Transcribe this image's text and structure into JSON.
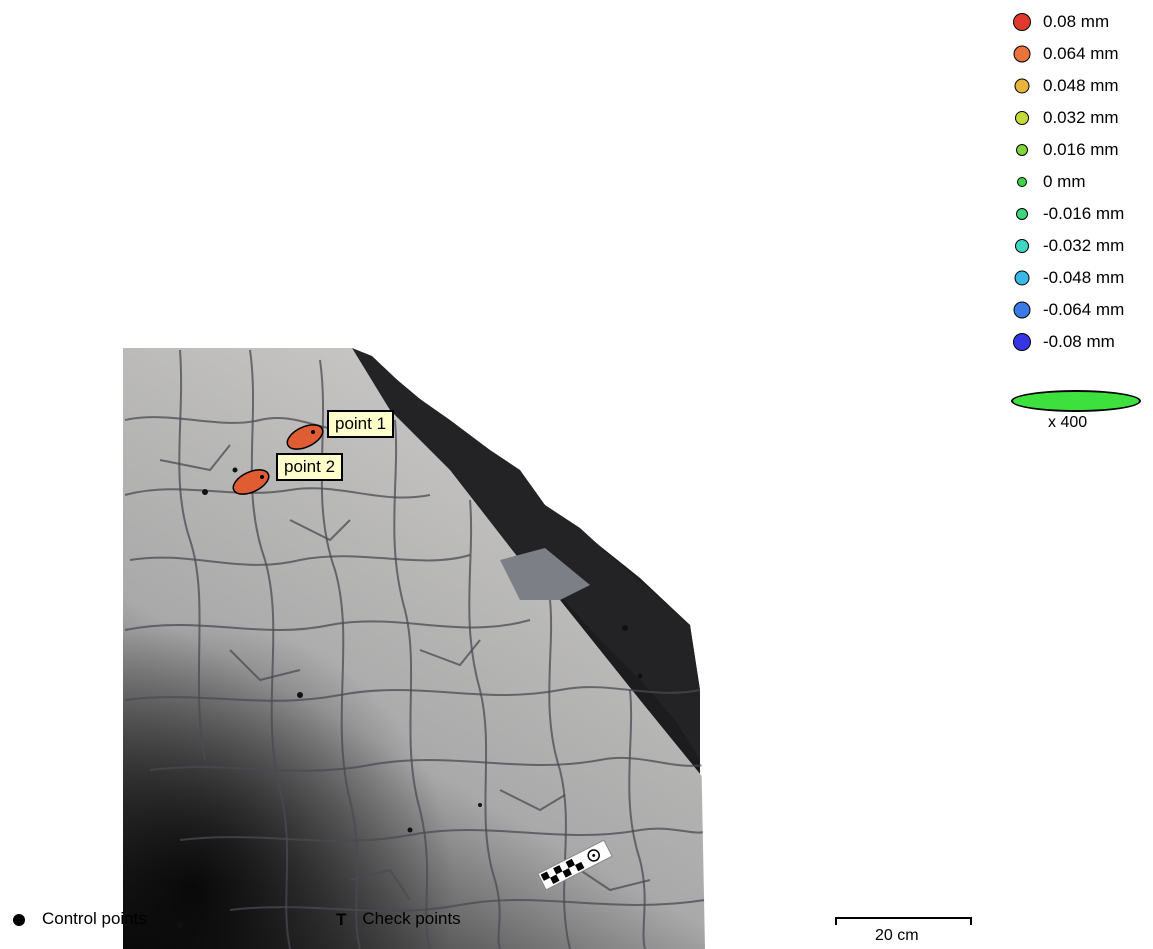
{
  "legend": {
    "items": [
      {
        "label": "0.08 mm",
        "color": "#e03a2e",
        "size": 18
      },
      {
        "label": "0.064 mm",
        "color": "#e8743b",
        "size": 17
      },
      {
        "label": "0.048 mm",
        "color": "#e8b43c",
        "size": 15
      },
      {
        "label": "0.032 mm",
        "color": "#c6d83a",
        "size": 14
      },
      {
        "label": "0.016 mm",
        "color": "#7ed63a",
        "size": 12
      },
      {
        "label": "0 mm",
        "color": "#3cd54a",
        "size": 10
      },
      {
        "label": "-0.016 mm",
        "color": "#3fd67e",
        "size": 12
      },
      {
        "label": "-0.032 mm",
        "color": "#3fd6c4",
        "size": 14
      },
      {
        "label": "-0.048 mm",
        "color": "#3cb8e6",
        "size": 15
      },
      {
        "label": "-0.064 mm",
        "color": "#3a7ae6",
        "size": 17
      },
      {
        "label": "-0.08 mm",
        "color": "#3535e6",
        "size": 18
      }
    ]
  },
  "error_scale": {
    "label": "x 400",
    "color": "#3de03d"
  },
  "points": [
    {
      "label": "point 1",
      "color": "#e05c33"
    },
    {
      "label": "point 2",
      "color": "#e05c33"
    }
  ],
  "bottom_legend": {
    "control_points": "Control points",
    "check_points": "Check points"
  },
  "scale_bar": {
    "label": "20 cm"
  }
}
